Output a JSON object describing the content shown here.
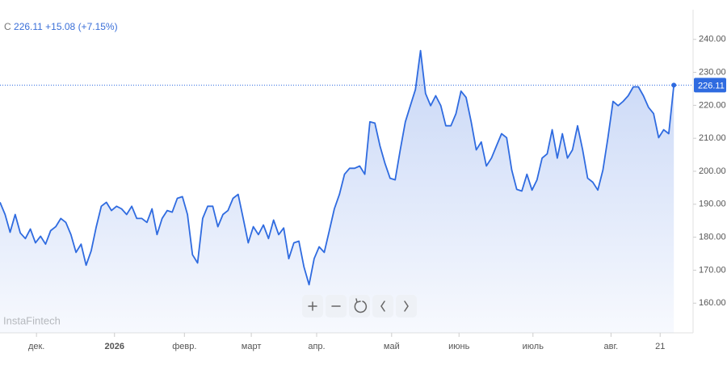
{
  "header": {
    "symbol": "C",
    "price": "226.11",
    "change": "+15.08",
    "change_pct": "(+7.15%)"
  },
  "watermark": "InstaFintech",
  "chart_data": {
    "type": "line",
    "color": "#2f6be0",
    "ylim": [
      151,
      249
    ],
    "xlim": [
      0,
      136.8
    ],
    "yticks": [
      {
        "value": 160,
        "label": "160.00"
      },
      {
        "value": 170,
        "label": "170.00"
      },
      {
        "value": 180,
        "label": "180.00"
      },
      {
        "value": 190,
        "label": "190.00"
      },
      {
        "value": 200,
        "label": "200.00"
      },
      {
        "value": 210,
        "label": "210.00"
      },
      {
        "value": 220,
        "label": "220.00"
      },
      {
        "value": 230,
        "label": "230.00"
      },
      {
        "value": 240,
        "label": "240.00"
      }
    ],
    "xticks": [
      {
        "value": 7.2,
        "label": "дек."
      },
      {
        "value": 22.6,
        "label": "2026"
      },
      {
        "value": 36.4,
        "label": "февр."
      },
      {
        "value": 49.6,
        "label": "март"
      },
      {
        "value": 62.5,
        "label": "апр."
      },
      {
        "value": 77.3,
        "label": "май"
      },
      {
        "value": 90.6,
        "label": "июнь"
      },
      {
        "value": 105.2,
        "label": "июль"
      },
      {
        "value": 120.6,
        "label": "авг."
      },
      {
        "value": 130.3,
        "label": "21"
      }
    ],
    "values": [
      190.6,
      186.9,
      181.5,
      186.9,
      181.3,
      179.6,
      182.5,
      178.3,
      180.3,
      177.9,
      182.0,
      183.2,
      185.7,
      184.5,
      180.8,
      175.4,
      177.9,
      171.5,
      175.9,
      183.2,
      189.4,
      190.6,
      188.1,
      189.4,
      188.6,
      186.9,
      189.4,
      185.7,
      185.7,
      184.5,
      188.6,
      180.8,
      185.7,
      188.1,
      187.6,
      191.8,
      192.3,
      186.9,
      174.7,
      172.2,
      185.7,
      189.4,
      189.4,
      183.2,
      186.9,
      188.1,
      191.8,
      193.0,
      185.7,
      178.3,
      183.2,
      180.8,
      183.7,
      179.6,
      185.2,
      180.8,
      182.8,
      173.5,
      178.3,
      178.8,
      171.0,
      165.6,
      173.5,
      177.1,
      175.4,
      182.0,
      188.6,
      193.0,
      199.1,
      200.9,
      200.9,
      201.6,
      199.1,
      215.0,
      214.6,
      207.7,
      202.3,
      197.9,
      197.4,
      206.5,
      215.0,
      219.9,
      224.8,
      236.6,
      223.6,
      219.9,
      222.9,
      219.9,
      213.8,
      213.8,
      217.5,
      224.3,
      222.4,
      215.0,
      206.5,
      208.9,
      201.6,
      204.0,
      207.7,
      211.4,
      210.2,
      200.4,
      194.5,
      194.0,
      199.1,
      194.3,
      197.4,
      204.0,
      205.3,
      212.6,
      204.0,
      211.4,
      204.0,
      206.5,
      213.8,
      206.5,
      197.9,
      196.7,
      194.3,
      200.4,
      210.2,
      221.2,
      219.9,
      221.2,
      222.9,
      225.6,
      225.6,
      222.9,
      219.4,
      217.5,
      210.2,
      212.6,
      211.4,
      226.11
    ]
  }
}
